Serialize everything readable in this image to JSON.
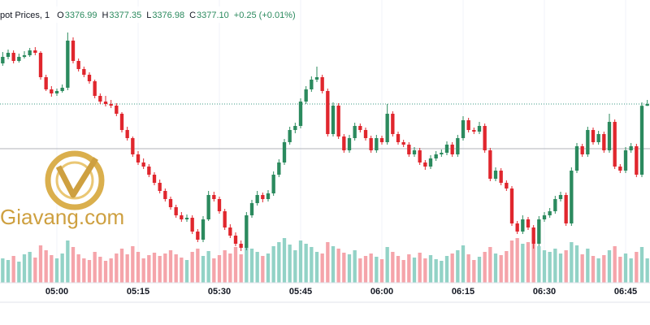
{
  "chart_data": {
    "type": "candlestick",
    "legend": {
      "symbol": "pot Prices, 1",
      "fields": [
        "O",
        "H",
        "L",
        "C"
      ],
      "value_labels": [
        "3376.99",
        "3377.35",
        "3376.98",
        "3377.10"
      ],
      "change": "+0.25 (+0.01%)"
    },
    "watermark": "Giavang.com",
    "xlim": [
      -0.5,
      119.5
    ],
    "xticks": [
      {
        "value": 10,
        "label": "05:00"
      },
      {
        "value": 25,
        "label": "05:15"
      },
      {
        "value": 40,
        "label": "05:30"
      },
      {
        "value": 55,
        "label": "05:45"
      },
      {
        "value": 70,
        "label": "06:00"
      },
      {
        "value": 85,
        "label": "06:15"
      },
      {
        "value": 100,
        "label": "06:30"
      },
      {
        "value": 115,
        "label": "06:45"
      }
    ],
    "ylim": [
      3366.1,
      3383.5
    ],
    "vlim": [
      0,
      100
    ],
    "grid": true,
    "up_color": "#2b8a5e",
    "down_color": "#e0262d",
    "volume_up_color": "#92d2c6",
    "volume_down_color": "#f5a4aa",
    "reference_lines": [
      {
        "value": 3377.1,
        "style": "dotted",
        "color": "#3c9b84"
      },
      {
        "value": 3374.35,
        "style": "solid",
        "color": "#b0b3ba"
      }
    ],
    "candles": [
      [
        3379.6,
        3380.3,
        3379.45,
        3380.0,
        30
      ],
      [
        3380.0,
        3380.45,
        3379.85,
        3380.25,
        28
      ],
      [
        3380.25,
        3380.4,
        3379.6,
        3379.75,
        33
      ],
      [
        3379.75,
        3380.2,
        3379.65,
        3380.0,
        26
      ],
      [
        3380.0,
        3380.35,
        3379.9,
        3380.1,
        35
      ],
      [
        3380.1,
        3380.55,
        3380.0,
        3380.4,
        38
      ],
      [
        3380.4,
        3380.6,
        3380.1,
        3380.25,
        31
      ],
      [
        3380.25,
        3380.35,
        3378.6,
        3378.75,
        46
      ],
      [
        3378.75,
        3378.9,
        3377.9,
        3378.0,
        40
      ],
      [
        3378.0,
        3378.2,
        3377.55,
        3377.75,
        34
      ],
      [
        3377.75,
        3378.05,
        3377.6,
        3377.9,
        30
      ],
      [
        3377.9,
        3378.3,
        3377.8,
        3378.1,
        36
      ],
      [
        3378.1,
        3381.5,
        3377.95,
        3381.0,
        52
      ],
      [
        3381.0,
        3381.2,
        3379.6,
        3379.75,
        44
      ],
      [
        3379.75,
        3379.9,
        3379.1,
        3379.25,
        35
      ],
      [
        3379.25,
        3379.4,
        3378.75,
        3378.9,
        30
      ],
      [
        3378.9,
        3379.05,
        3378.35,
        3378.5,
        28
      ],
      [
        3378.5,
        3378.6,
        3377.45,
        3377.6,
        38
      ],
      [
        3377.6,
        3377.75,
        3377.1,
        3377.25,
        32
      ],
      [
        3377.25,
        3377.6,
        3376.95,
        3377.1,
        27
      ],
      [
        3377.1,
        3377.35,
        3376.85,
        3377.0,
        30
      ],
      [
        3377.0,
        3377.15,
        3376.35,
        3376.5,
        36
      ],
      [
        3376.5,
        3376.6,
        3375.35,
        3375.5,
        42
      ],
      [
        3375.5,
        3375.7,
        3374.85,
        3375.0,
        35
      ],
      [
        3375.0,
        3375.1,
        3373.85,
        3374.0,
        45
      ],
      [
        3374.0,
        3374.2,
        3373.35,
        3373.5,
        38
      ],
      [
        3373.5,
        3373.75,
        3373.1,
        3373.25,
        30
      ],
      [
        3373.25,
        3373.4,
        3372.6,
        3372.75,
        34
      ],
      [
        3372.75,
        3372.9,
        3372.1,
        3372.25,
        37
      ],
      [
        3372.25,
        3372.45,
        3371.6,
        3371.75,
        33
      ],
      [
        3371.75,
        3371.9,
        3371.1,
        3371.25,
        36
      ],
      [
        3371.25,
        3371.4,
        3370.6,
        3370.75,
        40
      ],
      [
        3370.75,
        3370.9,
        3370.1,
        3370.25,
        35
      ],
      [
        3370.25,
        3370.45,
        3369.85,
        3370.0,
        31
      ],
      [
        3370.0,
        3370.3,
        3369.85,
        3370.1,
        28
      ],
      [
        3370.1,
        3370.25,
        3369.1,
        3369.25,
        38
      ],
      [
        3369.25,
        3369.4,
        3368.6,
        3368.75,
        42
      ],
      [
        3368.75,
        3370.2,
        3368.6,
        3370.0,
        33
      ],
      [
        3370.0,
        3371.75,
        3369.9,
        3371.5,
        39
      ],
      [
        3371.5,
        3371.7,
        3371.1,
        3371.25,
        30
      ],
      [
        3371.25,
        3371.4,
        3370.35,
        3370.5,
        34
      ],
      [
        3370.5,
        3370.65,
        3369.35,
        3369.5,
        40
      ],
      [
        3369.5,
        3369.7,
        3368.85,
        3369.0,
        36
      ],
      [
        3369.0,
        3369.2,
        3368.35,
        3368.5,
        44
      ],
      [
        3368.5,
        3368.7,
        3368.05,
        3368.25,
        35
      ],
      [
        3368.25,
        3370.45,
        3368.1,
        3370.25,
        48
      ],
      [
        3370.25,
        3371.2,
        3370.1,
        3371.0,
        42
      ],
      [
        3371.0,
        3371.75,
        3370.85,
        3371.5,
        38
      ],
      [
        3371.5,
        3371.65,
        3371.05,
        3371.25,
        33
      ],
      [
        3371.25,
        3371.8,
        3371.1,
        3371.6,
        36
      ],
      [
        3371.6,
        3372.95,
        3371.45,
        3372.75,
        45
      ],
      [
        3372.75,
        3373.7,
        3372.6,
        3373.5,
        50
      ],
      [
        3373.5,
        3374.95,
        3373.35,
        3374.75,
        55
      ],
      [
        3374.75,
        3375.7,
        3374.6,
        3375.5,
        47
      ],
      [
        3375.5,
        3375.95,
        3375.3,
        3375.75,
        40
      ],
      [
        3375.75,
        3377.45,
        3375.6,
        3377.25,
        52
      ],
      [
        3377.25,
        3378.2,
        3377.1,
        3378.0,
        48
      ],
      [
        3378.0,
        3378.8,
        3377.85,
        3378.6,
        44
      ],
      [
        3378.6,
        3379.4,
        3378.45,
        3378.75,
        38
      ],
      [
        3378.75,
        3378.9,
        3377.75,
        3377.9,
        36
      ],
      [
        3377.9,
        3378.05,
        3375.1,
        3375.25,
        50
      ],
      [
        3375.25,
        3377.2,
        3375.1,
        3377.0,
        45
      ],
      [
        3377.0,
        3377.15,
        3374.95,
        3375.1,
        42
      ],
      [
        3375.1,
        3375.25,
        3374.1,
        3374.25,
        37
      ],
      [
        3374.25,
        3375.2,
        3374.1,
        3375.0,
        35
      ],
      [
        3375.0,
        3375.95,
        3374.85,
        3375.75,
        40
      ],
      [
        3375.75,
        3375.9,
        3375.35,
        3375.5,
        30
      ],
      [
        3375.5,
        3375.65,
        3374.85,
        3375.0,
        33
      ],
      [
        3375.0,
        3375.15,
        3374.1,
        3374.25,
        36
      ],
      [
        3374.25,
        3375.2,
        3374.1,
        3375.0,
        32
      ],
      [
        3375.0,
        3375.15,
        3374.6,
        3374.75,
        29
      ],
      [
        3374.75,
        3377.1,
        3374.6,
        3376.5,
        44
      ],
      [
        3376.5,
        3376.65,
        3375.1,
        3375.25,
        38
      ],
      [
        3375.25,
        3375.4,
        3374.6,
        3374.75,
        33
      ],
      [
        3374.75,
        3374.9,
        3374.45,
        3374.6,
        28
      ],
      [
        3374.6,
        3374.75,
        3373.85,
        3374.0,
        35
      ],
      [
        3374.0,
        3374.45,
        3373.85,
        3374.25,
        31
      ],
      [
        3374.25,
        3374.4,
        3373.35,
        3373.5,
        37
      ],
      [
        3373.5,
        3373.65,
        3373.05,
        3373.25,
        30
      ],
      [
        3373.25,
        3373.95,
        3373.1,
        3373.75,
        34
      ],
      [
        3373.75,
        3374.2,
        3373.6,
        3374.0,
        29
      ],
      [
        3374.0,
        3374.3,
        3373.85,
        3374.1,
        27
      ],
      [
        3374.1,
        3374.8,
        3373.95,
        3374.6,
        33
      ],
      [
        3374.6,
        3374.75,
        3373.85,
        3374.0,
        36
      ],
      [
        3374.0,
        3375.2,
        3373.85,
        3375.0,
        40
      ],
      [
        3375.0,
        3376.35,
        3374.85,
        3376.1,
        46
      ],
      [
        3376.1,
        3376.25,
        3375.35,
        3375.5,
        35
      ],
      [
        3375.5,
        3375.65,
        3375.25,
        3375.4,
        28
      ],
      [
        3375.4,
        3376.0,
        3375.25,
        3375.75,
        32
      ],
      [
        3375.75,
        3375.9,
        3374.1,
        3374.25,
        38
      ],
      [
        3374.25,
        3374.4,
        3372.35,
        3372.5,
        44
      ],
      [
        3372.5,
        3373.2,
        3372.35,
        3373.0,
        36
      ],
      [
        3373.0,
        3373.15,
        3372.1,
        3372.25,
        34
      ],
      [
        3372.25,
        3372.4,
        3371.75,
        3371.9,
        39
      ],
      [
        3371.9,
        3372.05,
        3369.6,
        3369.75,
        52
      ],
      [
        3369.75,
        3369.9,
        3369.1,
        3369.25,
        55
      ],
      [
        3369.25,
        3370.25,
        3369.1,
        3370.0,
        48
      ],
      [
        3370.0,
        3370.15,
        3369.35,
        3369.5,
        50
      ],
      [
        3369.5,
        3369.65,
        3368.2,
        3368.5,
        54
      ],
      [
        3368.5,
        3370.2,
        3368.35,
        3370.0,
        45
      ],
      [
        3370.0,
        3370.45,
        3369.85,
        3370.25,
        40
      ],
      [
        3370.25,
        3370.7,
        3370.1,
        3370.5,
        38
      ],
      [
        3370.5,
        3371.45,
        3370.35,
        3371.25,
        42
      ],
      [
        3371.25,
        3371.7,
        3371.1,
        3371.5,
        36
      ],
      [
        3371.5,
        3371.65,
        3369.6,
        3369.75,
        40
      ],
      [
        3369.75,
        3373.2,
        3369.6,
        3373.0,
        50
      ],
      [
        3373.0,
        3374.7,
        3372.85,
        3374.5,
        46
      ],
      [
        3374.5,
        3374.65,
        3373.85,
        3374.0,
        35
      ],
      [
        3374.0,
        3375.7,
        3373.85,
        3375.5,
        42
      ],
      [
        3375.5,
        3375.65,
        3374.6,
        3374.75,
        33
      ],
      [
        3374.75,
        3375.45,
        3374.6,
        3375.25,
        30
      ],
      [
        3375.25,
        3375.4,
        3374.1,
        3374.25,
        34
      ],
      [
        3374.25,
        3376.5,
        3374.1,
        3376.0,
        40
      ],
      [
        3376.0,
        3376.15,
        3373.1,
        3373.25,
        45
      ],
      [
        3373.25,
        3373.4,
        3372.85,
        3373.0,
        32
      ],
      [
        3373.0,
        3374.45,
        3372.85,
        3374.25,
        36
      ],
      [
        3374.25,
        3374.7,
        3374.1,
        3374.5,
        30
      ],
      [
        3374.5,
        3374.65,
        3372.6,
        3372.75,
        38
      ],
      [
        3372.75,
        3377.2,
        3372.6,
        3376.99,
        44
      ],
      [
        3376.99,
        3377.35,
        3376.98,
        3377.1,
        30
      ]
    ]
  }
}
